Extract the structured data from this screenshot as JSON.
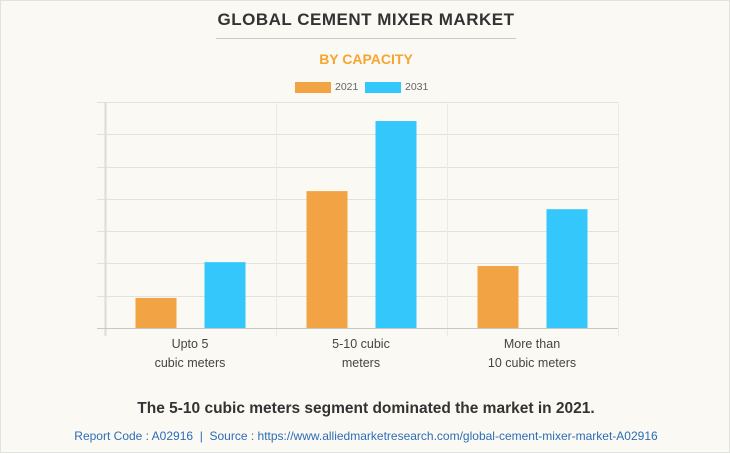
{
  "header": {
    "title": "GLOBAL CEMENT MIXER MARKET",
    "subtitle": "BY CAPACITY"
  },
  "chart_data": {
    "type": "bar",
    "title": "GLOBAL CEMENT MIXER MARKET",
    "subtitle": "BY CAPACITY",
    "xlabel": "",
    "ylabel": "",
    "y_tick_labels_shown": false,
    "y_units": "gridline intervals (axis unlabeled; values estimated relative to gridlines)",
    "ylim": [
      0,
      7
    ],
    "grid": true,
    "legend_position": "top-center",
    "categories": [
      [
        "Upto 5",
        "cubic meters"
      ],
      [
        "5-10 cubic",
        "meters"
      ],
      [
        "More than",
        "10 cubic meters"
      ]
    ],
    "series": [
      {
        "name": "2021",
        "color": "#f2a444",
        "values": [
          0.93,
          4.24,
          1.92
        ]
      },
      {
        "name": "2031",
        "color": "#33c7fc",
        "values": [
          2.04,
          6.41,
          3.68
        ]
      }
    ]
  },
  "caption": "The 5-10 cubic meters segment dominated the market in 2021.",
  "footer": {
    "text": "Report Code : A02916  |  Source : https://www.alliedmarketresearch.com/global-cement-mixer-market-A02916"
  },
  "colors": {
    "title": "#333333",
    "subtitle": "#f7a531",
    "footer_link": "#2d6db5",
    "background": "#faf9f4"
  }
}
